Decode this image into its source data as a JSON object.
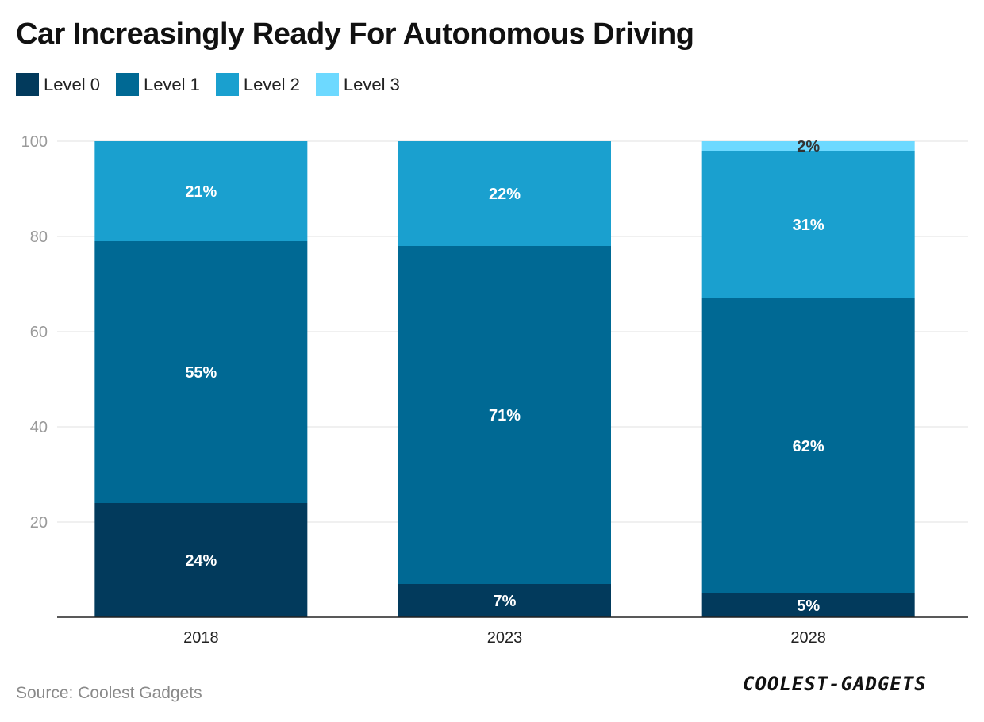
{
  "title": "Car Increasingly Ready For Autonomous Driving",
  "source": "Source: Coolest Gadgets",
  "logo": "COOLEST-GADGETS",
  "colors": {
    "grid": "#e2e2e2",
    "axis": "#222222"
  },
  "chart_data": {
    "type": "bar",
    "stacked": true,
    "title": "Car Increasingly Ready For Autonomous Driving",
    "categories": [
      "2018",
      "2023",
      "2028"
    ],
    "ylim": [
      0,
      100
    ],
    "yticks": [
      20,
      40,
      60,
      80,
      100
    ],
    "grid": true,
    "legend_position": "top-left",
    "series": [
      {
        "name": "Level 0",
        "color": "#023a5c",
        "values": [
          24,
          7,
          5
        ],
        "labels": [
          "24%",
          "7%",
          "5%"
        ],
        "label_color": "#ffffff"
      },
      {
        "name": "Level 1",
        "color": "#006994",
        "values": [
          55,
          71,
          62
        ],
        "labels": [
          "55%",
          "71%",
          "62%"
        ],
        "label_color": "#ffffff"
      },
      {
        "name": "Level 2",
        "color": "#1aa0cf",
        "values": [
          21,
          22,
          31
        ],
        "labels": [
          "21%",
          "22%",
          "31%"
        ],
        "label_color": "#ffffff"
      },
      {
        "name": "Level 3",
        "color": "#6dd9ff",
        "values": [
          0,
          0,
          2
        ],
        "labels": [
          "",
          "",
          "2%"
        ],
        "label_color": "#333333"
      }
    ]
  }
}
